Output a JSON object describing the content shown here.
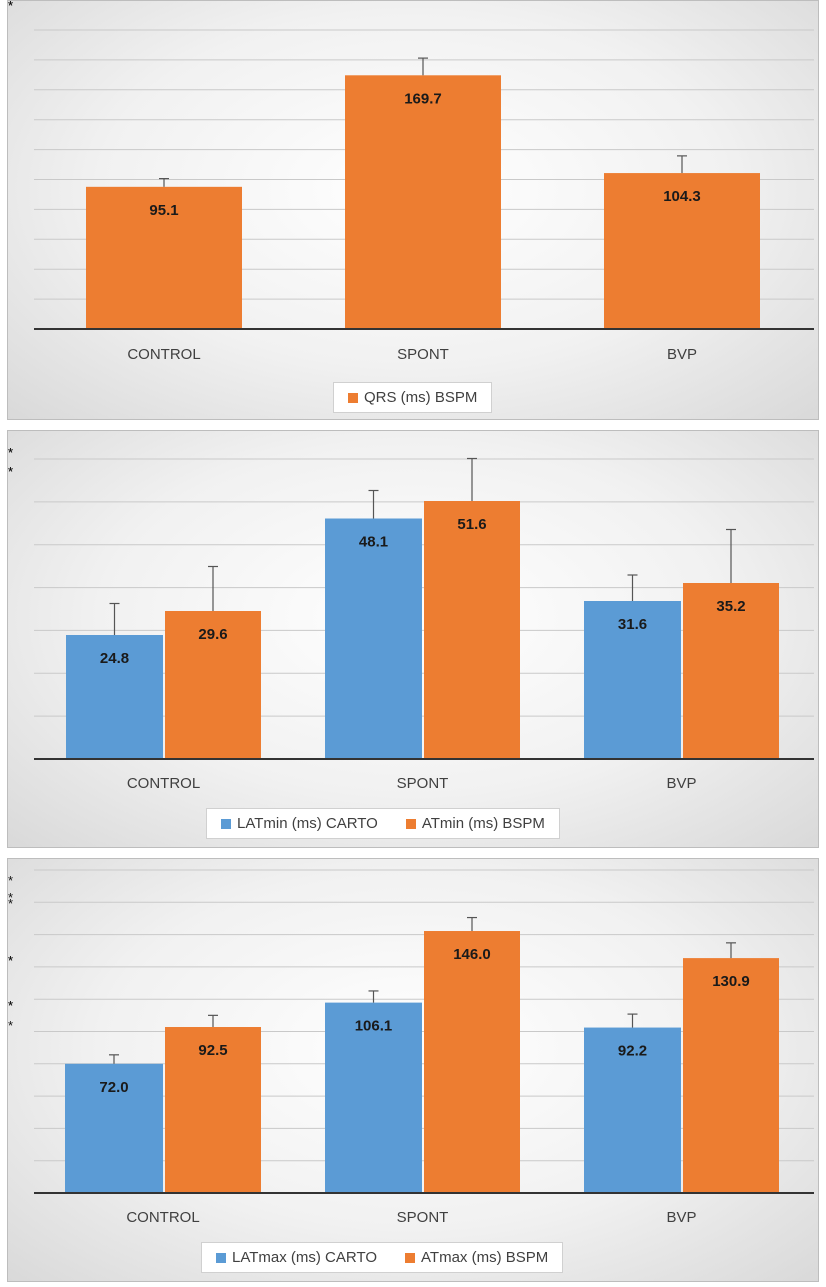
{
  "colors": {
    "blue": "#5b9bd5",
    "orange": "#ed7d31",
    "grid": "#c9c9c9",
    "axis": "#333333"
  },
  "significance_marker": "**",
  "chart_data": [
    {
      "type": "bar",
      "categories": [
        "CONTROL",
        "SPONT",
        "BVP"
      ],
      "series": [
        {
          "name": "QRS (ms) BSPM",
          "color": "#ed7d31",
          "values": [
            95.1,
            169.7,
            104.3
          ],
          "error": [
            5.5,
            11.5,
            11.5
          ]
        }
      ],
      "ylim": [
        0,
        200
      ],
      "grid": true,
      "legend_position": "bottom",
      "significance": [
        {
          "from": [
            1,
            0
          ],
          "to": [
            0,
            0
          ],
          "label": "**"
        },
        {
          "from": [
            1,
            0
          ],
          "to": [
            2,
            0
          ],
          "label": "**"
        }
      ]
    },
    {
      "type": "bar",
      "categories": [
        "CONTROL",
        "SPONT",
        "BVP"
      ],
      "series": [
        {
          "name": "LATmin (ms) CARTO",
          "color": "#5b9bd5",
          "values": [
            24.8,
            48.1,
            31.6
          ],
          "error": [
            6.3,
            5.6,
            5.2
          ]
        },
        {
          "name": "ATmin (ms) BSPM",
          "color": "#ed7d31",
          "values": [
            29.6,
            51.6,
            35.2
          ],
          "error": [
            8.9,
            8.5,
            10.7
          ]
        }
      ],
      "ylim": [
        0,
        60
      ],
      "grid": true,
      "legend_position": "bottom",
      "significance": [
        {
          "from": [
            1,
            0
          ],
          "to": [
            0,
            0
          ],
          "label": "**"
        },
        {
          "from": [
            1,
            1
          ],
          "to": [
            0,
            1
          ],
          "label": "**"
        },
        {
          "from": [
            1,
            0
          ],
          "to": [
            2,
            0
          ],
          "label": "**"
        },
        {
          "from": [
            1,
            1
          ],
          "to": [
            2,
            1
          ],
          "label": "**"
        }
      ]
    },
    {
      "type": "bar",
      "categories": [
        "CONTROL",
        "SPONT",
        "BVP"
      ],
      "series": [
        {
          "name": "LATmax (ms) CARTO",
          "color": "#5b9bd5",
          "values": [
            72.0,
            106.1,
            92.2
          ],
          "error": [
            5,
            6.5,
            7.5
          ]
        },
        {
          "name": "ATmax (ms) BSPM",
          "color": "#ed7d31",
          "values": [
            92.5,
            146.0,
            130.9
          ],
          "error": [
            6.5,
            7.5,
            8.5
          ]
        }
      ],
      "ylim": [
        0,
        180
      ],
      "grid": true,
      "legend_position": "bottom",
      "significance": [
        {
          "from": [
            0,
            0
          ],
          "to": [
            0,
            1
          ],
          "label": "**"
        },
        {
          "from": [
            0,
            0
          ],
          "to": [
            1,
            0
          ],
          "label": "**"
        },
        {
          "from": [
            1,
            0
          ],
          "to": [
            1,
            1
          ],
          "label": "**"
        },
        {
          "from": [
            1,
            0
          ],
          "to": [
            2,
            0
          ],
          "label": "**"
        },
        {
          "from": [
            2,
            0
          ],
          "to": [
            2,
            1
          ],
          "label": "**"
        },
        {
          "from": [
            0,
            0
          ],
          "to": [
            2,
            0
          ],
          "label": "**"
        },
        {
          "from": [
            0,
            1
          ],
          "to": [
            1,
            1
          ],
          "label": "**"
        },
        {
          "from": [
            0,
            1
          ],
          "to": [
            2,
            1
          ],
          "label": "**"
        }
      ]
    }
  ]
}
